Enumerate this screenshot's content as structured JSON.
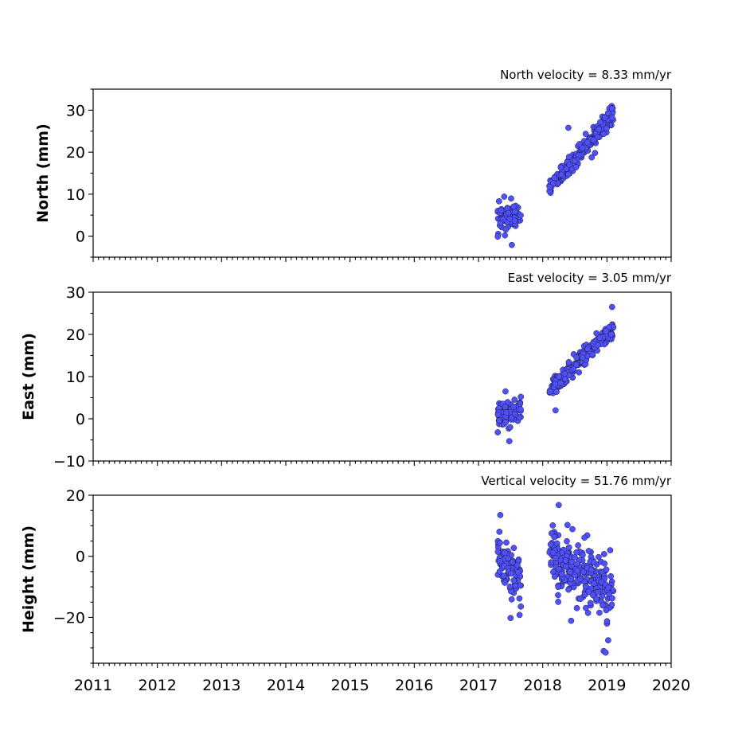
{
  "figure": {
    "xticks": [
      "2011",
      "2012",
      "2013",
      "2014",
      "2015",
      "2016",
      "2017",
      "2018",
      "2019",
      "2020"
    ]
  },
  "chart_data": [
    {
      "type": "scatter",
      "key": "north",
      "title": "North velocity = 8.33 mm/yr",
      "xlabel": "",
      "ylabel": "North (mm)",
      "xlim": [
        2011,
        2020
      ],
      "ylim": [
        -5,
        35
      ],
      "yticks": [
        "0",
        "10",
        "20",
        "30"
      ],
      "grid": false,
      "marker_color": "#5050ff",
      "edge_color": "#1a1a33",
      "velocity_mm_per_yr": 8.33,
      "segments": [
        {
          "x_start": 2017.3,
          "x_end": 2017.66,
          "y_start": 4.5,
          "y_end": 4.8,
          "noise": 1.8,
          "n": 80
        },
        {
          "x_start": 2018.1,
          "x_end": 2019.1,
          "y_start": 11.5,
          "y_end": 29.0,
          "noise": 1.3,
          "n": 240
        }
      ],
      "points": [
        [
          2017.3,
          -0.1
        ],
        [
          2017.32,
          8.3
        ],
        [
          2017.4,
          9.4
        ],
        [
          2017.52,
          -2.1
        ],
        [
          2018.4,
          25.8
        ],
        [
          2019.08,
          30.4
        ]
      ]
    },
    {
      "type": "scatter",
      "key": "east",
      "title": "East velocity = 3.05 mm/yr",
      "xlabel": "",
      "ylabel": "East (mm)",
      "xlim": [
        2011,
        2020
      ],
      "ylim": [
        -10,
        30
      ],
      "yticks": [
        "−10",
        "0",
        "10",
        "20",
        "30"
      ],
      "grid": false,
      "marker_color": "#5050ff",
      "edge_color": "#1a1a33",
      "velocity_mm_per_yr": 3.05,
      "segments": [
        {
          "x_start": 2017.3,
          "x_end": 2017.66,
          "y_start": 1.0,
          "y_end": 2.2,
          "noise": 1.8,
          "n": 80
        },
        {
          "x_start": 2018.1,
          "x_end": 2019.1,
          "y_start": 6.8,
          "y_end": 21.5,
          "noise": 1.3,
          "n": 240
        }
      ],
      "points": [
        [
          2017.3,
          -3.2
        ],
        [
          2017.42,
          6.5
        ],
        [
          2017.48,
          -5.3
        ],
        [
          2018.2,
          2.0
        ],
        [
          2019.08,
          26.5
        ]
      ]
    },
    {
      "type": "scatter",
      "key": "height",
      "title": "Vertical velocity = 51.76 mm/yr",
      "xlabel": "",
      "ylabel": "Height (mm)",
      "xlim": [
        2011,
        2020
      ],
      "ylim": [
        -35,
        20
      ],
      "yticks": [
        "−20",
        "0",
        "20"
      ],
      "grid": false,
      "marker_color": "#5050ff",
      "edge_color": "#1a1a33",
      "velocity_mm_per_yr": 51.76,
      "segments": [
        {
          "x_start": 2017.3,
          "x_end": 2017.66,
          "y_start": 1.0,
          "y_end": -8.0,
          "noise": 5.0,
          "n": 90
        },
        {
          "x_start": 2018.1,
          "x_end": 2019.1,
          "y_start": 0.0,
          "y_end": -12.0,
          "noise": 5.5,
          "n": 260
        }
      ],
      "points": [
        [
          2017.34,
          13.5
        ],
        [
          2017.5,
          -20.2
        ],
        [
          2017.64,
          -19.2
        ],
        [
          2018.25,
          16.8
        ],
        [
          2018.95,
          -31.0
        ],
        [
          2018.98,
          -31.5
        ],
        [
          2019.02,
          -27.5
        ],
        [
          2019.05,
          2.0
        ]
      ]
    }
  ]
}
